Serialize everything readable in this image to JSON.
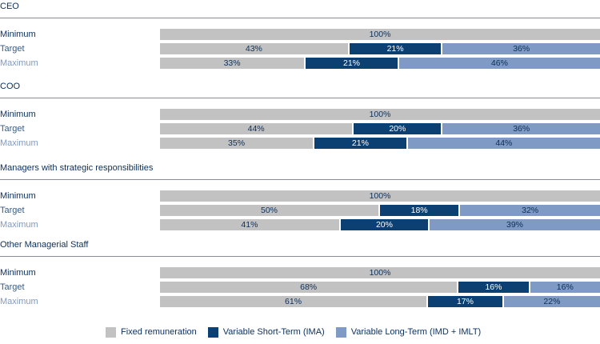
{
  "chart_data": {
    "type": "bar",
    "orientation": "horizontal",
    "stacked": true,
    "xlim": [
      0,
      100
    ],
    "legend_position": "bottom",
    "legend": [
      {
        "key": "fixed",
        "label": "Fixed remuneration",
        "color": "#c2c2c2"
      },
      {
        "key": "short",
        "label": "Variable Short-Term (IMA)",
        "color": "#0c3f72"
      },
      {
        "key": "long",
        "label": "Variable Long-Term (IMD + IMLT)",
        "color": "#7f9ac4"
      }
    ],
    "groups": [
      {
        "title": "CEO",
        "rows": [
          {
            "label": "Minimum",
            "label_color": "#0b2f5b",
            "segments": [
              {
                "series": "fixed",
                "value": 100,
                "text": "100%"
              }
            ]
          },
          {
            "label": "Target",
            "label_color": "#3a5a80",
            "segments": [
              {
                "series": "fixed",
                "value": 43,
                "text": "43%"
              },
              {
                "series": "short",
                "value": 21,
                "text": "21%"
              },
              {
                "series": "long",
                "value": 36,
                "text": "36%"
              }
            ]
          },
          {
            "label": "Maximum",
            "label_color": "#7f9ac4",
            "segments": [
              {
                "series": "fixed",
                "value": 33,
                "text": "33%"
              },
              {
                "series": "short",
                "value": 21,
                "text": "21%"
              },
              {
                "series": "long",
                "value": 46,
                "text": "46%"
              }
            ]
          }
        ]
      },
      {
        "title": "COO",
        "rows": [
          {
            "label": "Minimum",
            "label_color": "#0b2f5b",
            "segments": [
              {
                "series": "fixed",
                "value": 100,
                "text": "100%"
              }
            ]
          },
          {
            "label": "Target",
            "label_color": "#3a5a80",
            "segments": [
              {
                "series": "fixed",
                "value": 44,
                "text": "44%"
              },
              {
                "series": "short",
                "value": 20,
                "text": "20%"
              },
              {
                "series": "long",
                "value": 36,
                "text": "36%"
              }
            ]
          },
          {
            "label": "Maximum",
            "label_color": "#7f9ac4",
            "segments": [
              {
                "series": "fixed",
                "value": 35,
                "text": "35%"
              },
              {
                "series": "short",
                "value": 21,
                "text": "21%"
              },
              {
                "series": "long",
                "value": 44,
                "text": "44%"
              }
            ]
          }
        ]
      },
      {
        "title": "Managers with strategic responsibilities",
        "rows": [
          {
            "label": "Minimum",
            "label_color": "#0b2f5b",
            "segments": [
              {
                "series": "fixed",
                "value": 100,
                "text": "100%"
              }
            ]
          },
          {
            "label": "Target",
            "label_color": "#3a5a80",
            "segments": [
              {
                "series": "fixed",
                "value": 50,
                "text": "50%"
              },
              {
                "series": "short",
                "value": 18,
                "text": "18%"
              },
              {
                "series": "long",
                "value": 32,
                "text": "32%"
              }
            ]
          },
          {
            "label": "Maximum",
            "label_color": "#7f9ac4",
            "segments": [
              {
                "series": "fixed",
                "value": 41,
                "text": "41%"
              },
              {
                "series": "short",
                "value": 20,
                "text": "20%"
              },
              {
                "series": "long",
                "value": 39,
                "text": "39%"
              }
            ]
          }
        ]
      },
      {
        "title": "Other Managerial Staff",
        "rows": [
          {
            "label": "Minimum",
            "label_color": "#0b2f5b",
            "segments": [
              {
                "series": "fixed",
                "value": 100,
                "text": "100%"
              }
            ]
          },
          {
            "label": "Target",
            "label_color": "#3a5a80",
            "segments": [
              {
                "series": "fixed",
                "value": 68,
                "text": "68%"
              },
              {
                "series": "short",
                "value": 16,
                "text": "16%"
              },
              {
                "series": "long",
                "value": 16,
                "text": "16%"
              }
            ]
          },
          {
            "label": "Maximum",
            "label_color": "#7f9ac4",
            "segments": [
              {
                "series": "fixed",
                "value": 61,
                "text": "61%"
              },
              {
                "series": "short",
                "value": 17,
                "text": "17%"
              },
              {
                "series": "long",
                "value": 22,
                "text": "22%"
              }
            ]
          }
        ]
      }
    ]
  }
}
